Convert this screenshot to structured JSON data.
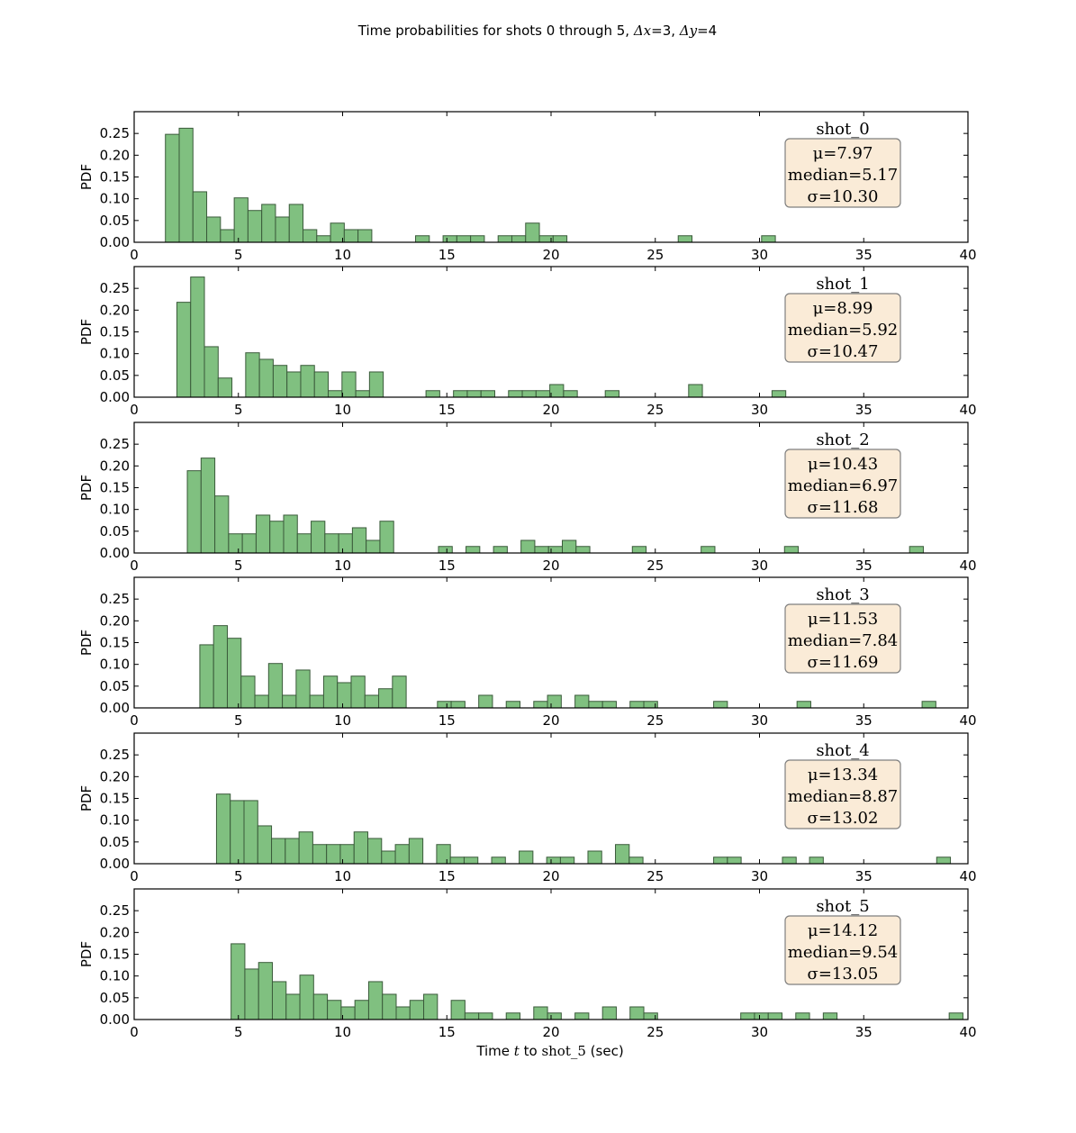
{
  "title": {
    "prefix": "Time probabilities for shots 0 through 5, ",
    "dx_sym": "Δx",
    "dx_val": "=3",
    "sep": ", ",
    "dy_sym": "Δy",
    "dy_val": "=4"
  },
  "xlabel": {
    "prefix": "Time ",
    "var": "t",
    "mid": " to ",
    "target": "shot_5",
    "suffix": " (sec)"
  },
  "colors": {
    "bar_fill": "#80c080",
    "bar_edge": "#3a5a3a",
    "stat_box_fill": "#faebd7",
    "stat_box_edge": "#7f7f7f"
  },
  "chart_data": [
    {
      "type": "histogram",
      "name": "shot_0",
      "bin_width": 0.66,
      "xlim": [
        0,
        40
      ],
      "ylim": [
        0,
        0.3
      ],
      "xticks": [
        "0",
        "5",
        "10",
        "15",
        "20",
        "25",
        "30",
        "35",
        "40"
      ],
      "yticks": [
        "0.00",
        "0.05",
        "0.10",
        "0.15",
        "0.20",
        "0.25"
      ],
      "ylabel": "PDF",
      "stats": {
        "mu": "μ=7.97",
        "median": "median=5.17",
        "sigma": "σ=10.30"
      },
      "bins": [
        [
          1.5,
          0.248
        ],
        [
          2.16,
          0.262
        ],
        [
          2.82,
          0.116
        ],
        [
          3.48,
          0.058
        ],
        [
          4.14,
          0.029
        ],
        [
          4.8,
          0.102
        ],
        [
          5.46,
          0.073
        ],
        [
          6.12,
          0.087
        ],
        [
          6.78,
          0.058
        ],
        [
          7.44,
          0.087
        ],
        [
          8.1,
          0.029
        ],
        [
          8.76,
          0.015
        ],
        [
          9.42,
          0.044
        ],
        [
          10.08,
          0.029
        ],
        [
          10.74,
          0.029
        ],
        [
          13.5,
          0.015
        ],
        [
          14.82,
          0.015
        ],
        [
          15.48,
          0.015
        ],
        [
          16.14,
          0.015
        ],
        [
          17.46,
          0.015
        ],
        [
          18.12,
          0.015
        ],
        [
          18.78,
          0.044
        ],
        [
          19.44,
          0.015
        ],
        [
          20.1,
          0.015
        ],
        [
          26.1,
          0.015
        ],
        [
          30.1,
          0.015
        ]
      ]
    },
    {
      "type": "histogram",
      "name": "shot_1",
      "bin_width": 0.66,
      "xlim": [
        0,
        40
      ],
      "ylim": [
        0,
        0.3
      ],
      "xticks": [
        "0",
        "5",
        "10",
        "15",
        "20",
        "25",
        "30",
        "35",
        "40"
      ],
      "yticks": [
        "0.00",
        "0.05",
        "0.10",
        "0.15",
        "0.20",
        "0.25"
      ],
      "ylabel": "PDF",
      "stats": {
        "mu": "μ=8.99",
        "median": "median=5.92",
        "sigma": "σ=10.47"
      },
      "bins": [
        [
          2.05,
          0.218
        ],
        [
          2.71,
          0.276
        ],
        [
          3.37,
          0.116
        ],
        [
          4.03,
          0.044
        ],
        [
          5.35,
          0.102
        ],
        [
          6.01,
          0.087
        ],
        [
          6.67,
          0.073
        ],
        [
          7.33,
          0.058
        ],
        [
          7.99,
          0.073
        ],
        [
          8.65,
          0.058
        ],
        [
          9.31,
          0.015
        ],
        [
          9.97,
          0.058
        ],
        [
          10.63,
          0.015
        ],
        [
          11.29,
          0.058
        ],
        [
          14.0,
          0.015
        ],
        [
          15.32,
          0.015
        ],
        [
          15.98,
          0.015
        ],
        [
          16.64,
          0.015
        ],
        [
          17.96,
          0.015
        ],
        [
          18.62,
          0.015
        ],
        [
          19.28,
          0.015
        ],
        [
          19.94,
          0.029
        ],
        [
          20.6,
          0.015
        ],
        [
          22.6,
          0.015
        ],
        [
          26.6,
          0.029
        ],
        [
          30.6,
          0.015
        ]
      ]
    },
    {
      "type": "histogram",
      "name": "shot_2",
      "bin_width": 0.66,
      "xlim": [
        0,
        40
      ],
      "ylim": [
        0,
        0.3
      ],
      "xticks": [
        "0",
        "5",
        "10",
        "15",
        "20",
        "25",
        "30",
        "35",
        "40"
      ],
      "yticks": [
        "0.00",
        "0.05",
        "0.10",
        "0.15",
        "0.20",
        "0.25"
      ],
      "ylabel": "PDF",
      "stats": {
        "mu": "μ=10.43",
        "median": "median=6.97",
        "sigma": "σ=11.68"
      },
      "bins": [
        [
          2.55,
          0.189
        ],
        [
          3.21,
          0.218
        ],
        [
          3.87,
          0.131
        ],
        [
          4.53,
          0.044
        ],
        [
          5.19,
          0.044
        ],
        [
          5.85,
          0.087
        ],
        [
          6.51,
          0.073
        ],
        [
          7.17,
          0.087
        ],
        [
          7.83,
          0.044
        ],
        [
          8.49,
          0.073
        ],
        [
          9.15,
          0.044
        ],
        [
          9.81,
          0.044
        ],
        [
          10.47,
          0.058
        ],
        [
          11.13,
          0.029
        ],
        [
          11.79,
          0.073
        ],
        [
          14.6,
          0.015
        ],
        [
          15.92,
          0.015
        ],
        [
          17.24,
          0.015
        ],
        [
          18.56,
          0.029
        ],
        [
          19.22,
          0.015
        ],
        [
          19.88,
          0.015
        ],
        [
          20.54,
          0.029
        ],
        [
          21.2,
          0.015
        ],
        [
          23.9,
          0.015
        ],
        [
          27.2,
          0.015
        ],
        [
          31.2,
          0.015
        ],
        [
          37.2,
          0.015
        ]
      ]
    },
    {
      "type": "histogram",
      "name": "shot_3",
      "bin_width": 0.66,
      "xlim": [
        0,
        40
      ],
      "ylim": [
        0,
        0.3
      ],
      "xticks": [
        "0",
        "5",
        "10",
        "15",
        "20",
        "25",
        "30",
        "35",
        "40"
      ],
      "yticks": [
        "0.00",
        "0.05",
        "0.10",
        "0.15",
        "0.20",
        "0.25"
      ],
      "ylabel": "PDF",
      "stats": {
        "mu": "μ=11.53",
        "median": "median=7.84",
        "sigma": "σ=11.69"
      },
      "bins": [
        [
          3.15,
          0.145
        ],
        [
          3.81,
          0.189
        ],
        [
          4.47,
          0.16
        ],
        [
          5.13,
          0.073
        ],
        [
          5.79,
          0.029
        ],
        [
          6.45,
          0.102
        ],
        [
          7.11,
          0.029
        ],
        [
          7.77,
          0.087
        ],
        [
          8.43,
          0.029
        ],
        [
          9.09,
          0.073
        ],
        [
          9.75,
          0.058
        ],
        [
          10.41,
          0.073
        ],
        [
          11.07,
          0.029
        ],
        [
          11.73,
          0.044
        ],
        [
          12.39,
          0.073
        ],
        [
          14.55,
          0.015
        ],
        [
          15.21,
          0.015
        ],
        [
          16.53,
          0.029
        ],
        [
          17.85,
          0.015
        ],
        [
          19.17,
          0.015
        ],
        [
          19.83,
          0.029
        ],
        [
          20.49,
          0.0
        ],
        [
          21.15,
          0.029
        ],
        [
          21.81,
          0.015
        ],
        [
          22.47,
          0.015
        ],
        [
          23.79,
          0.015
        ],
        [
          24.45,
          0.015
        ],
        [
          27.8,
          0.015
        ],
        [
          31.8,
          0.015
        ],
        [
          37.8,
          0.015
        ]
      ]
    },
    {
      "type": "histogram",
      "name": "shot_4",
      "bin_width": 0.66,
      "xlim": [
        0,
        40
      ],
      "ylim": [
        0,
        0.3
      ],
      "xticks": [
        "0",
        "5",
        "10",
        "15",
        "20",
        "25",
        "30",
        "35",
        "40"
      ],
      "yticks": [
        "0.00",
        "0.05",
        "0.10",
        "0.15",
        "0.20",
        "0.25"
      ],
      "ylabel": "PDF",
      "stats": {
        "mu": "μ=13.34",
        "median": "median=8.87",
        "sigma": "σ=13.02"
      },
      "bins": [
        [
          3.95,
          0.16
        ],
        [
          4.61,
          0.145
        ],
        [
          5.27,
          0.145
        ],
        [
          5.93,
          0.087
        ],
        [
          6.59,
          0.058
        ],
        [
          7.25,
          0.058
        ],
        [
          7.91,
          0.073
        ],
        [
          8.57,
          0.044
        ],
        [
          9.23,
          0.044
        ],
        [
          9.89,
          0.044
        ],
        [
          10.55,
          0.073
        ],
        [
          11.21,
          0.058
        ],
        [
          11.87,
          0.029
        ],
        [
          12.53,
          0.044
        ],
        [
          13.19,
          0.058
        ],
        [
          14.51,
          0.044
        ],
        [
          15.17,
          0.015
        ],
        [
          15.83,
          0.015
        ],
        [
          17.15,
          0.015
        ],
        [
          18.47,
          0.029
        ],
        [
          19.79,
          0.015
        ],
        [
          20.45,
          0.015
        ],
        [
          21.77,
          0.029
        ],
        [
          23.09,
          0.044
        ],
        [
          23.75,
          0.015
        ],
        [
          27.8,
          0.015
        ],
        [
          28.46,
          0.015
        ],
        [
          31.1,
          0.015
        ],
        [
          32.4,
          0.015
        ],
        [
          38.5,
          0.015
        ]
      ]
    },
    {
      "type": "histogram",
      "name": "shot_5",
      "bin_width": 0.66,
      "xlim": [
        0,
        40
      ],
      "ylim": [
        0,
        0.3
      ],
      "xticks": [
        "0",
        "5",
        "10",
        "15",
        "20",
        "25",
        "30",
        "35",
        "40"
      ],
      "yticks": [
        "0.00",
        "0.05",
        "0.10",
        "0.15",
        "0.20",
        "0.25"
      ],
      "ylabel": "PDF",
      "stats": {
        "mu": "μ=14.12",
        "median": "median=9.54",
        "sigma": "σ=13.05"
      },
      "bins": [
        [
          4.65,
          0.174
        ],
        [
          5.31,
          0.116
        ],
        [
          5.97,
          0.131
        ],
        [
          6.63,
          0.087
        ],
        [
          7.29,
          0.058
        ],
        [
          7.95,
          0.102
        ],
        [
          8.61,
          0.058
        ],
        [
          9.27,
          0.044
        ],
        [
          9.93,
          0.029
        ],
        [
          10.59,
          0.044
        ],
        [
          11.25,
          0.087
        ],
        [
          11.91,
          0.058
        ],
        [
          12.57,
          0.029
        ],
        [
          13.23,
          0.044
        ],
        [
          13.89,
          0.058
        ],
        [
          15.21,
          0.044
        ],
        [
          15.87,
          0.015
        ],
        [
          16.53,
          0.015
        ],
        [
          17.85,
          0.015
        ],
        [
          19.17,
          0.029
        ],
        [
          19.83,
          0.015
        ],
        [
          21.15,
          0.015
        ],
        [
          22.47,
          0.029
        ],
        [
          23.79,
          0.029
        ],
        [
          24.45,
          0.015
        ],
        [
          29.1,
          0.015
        ],
        [
          29.76,
          0.015
        ],
        [
          30.42,
          0.015
        ],
        [
          31.74,
          0.015
        ],
        [
          33.06,
          0.015
        ],
        [
          39.1,
          0.015
        ]
      ]
    }
  ]
}
